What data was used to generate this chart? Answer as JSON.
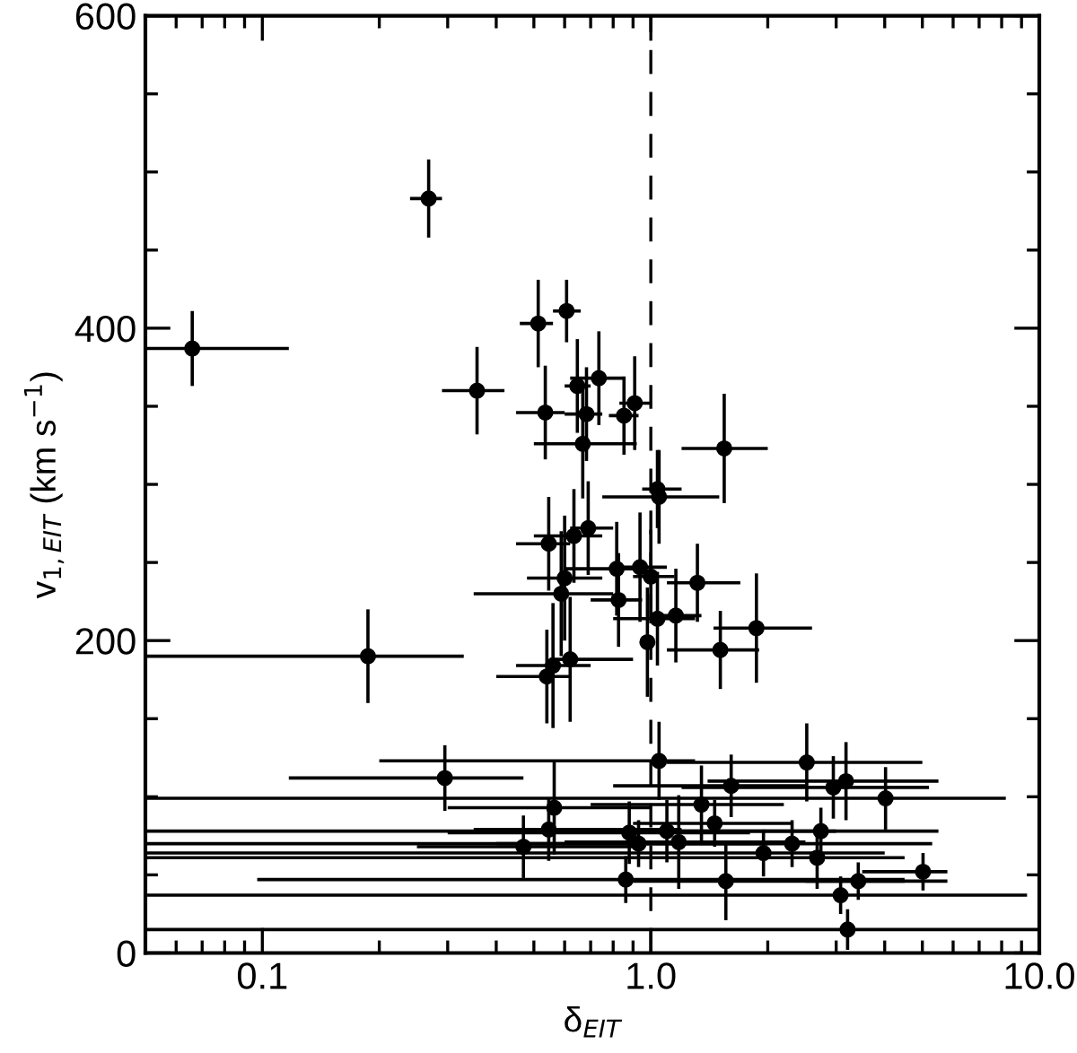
{
  "chart_data": {
    "type": "scatter",
    "xlabel": "δ$_{EIT}$",
    "ylabel": "v$_{1,EIT}$ (km s$^{−1}$)",
    "log": "x",
    "xlim": [
      0.05,
      10
    ],
    "ylim": [
      0,
      600
    ],
    "xticks": [
      0.1,
      {
        "value": 1,
        "label": "1.0"
      },
      {
        "value": 10,
        "label": "10.0"
      }
    ],
    "yticks": [
      0,
      200,
      400,
      600
    ],
    "marker": "circle",
    "ref_lines": [
      {
        "axis": "x",
        "value": 1,
        "color": "#000000",
        "line_style": "dashed"
      }
    ],
    "series": [
      {
        "color": "#000000",
        "x": [
          0.066,
          0.268,
          0.357,
          0.513,
          0.535,
          0.607,
          0.647,
          0.735,
          0.683,
          0.853,
          0.909,
          0.668,
          1.545,
          1.04,
          1.05,
          0.69,
          0.634,
          0.546,
          0.6,
          0.588,
          0.817,
          0.938,
          1.0,
          1.318,
          0.826,
          1.04,
          1.16,
          0.98,
          1.87,
          1.51,
          0.62,
          0.56,
          0.54,
          0.187,
          0.295,
          0.47,
          1.05,
          2.52,
          3.18,
          2.95,
          1.61,
          4.02,
          1.35,
          0.564,
          0.546,
          0.88,
          1.1,
          1.46,
          2.74,
          0.93,
          1.18,
          2.31,
          1.95,
          2.68,
          5.02,
          0.862,
          1.56,
          3.42,
          3.08,
          3.21
        ],
        "values": [
          387,
          483,
          360,
          403,
          346,
          411,
          363,
          368,
          345,
          344,
          352,
          326,
          323,
          297,
          292,
          272,
          267,
          262,
          240,
          230,
          246,
          247,
          241,
          237,
          226,
          214,
          216,
          199,
          208,
          194,
          188,
          184,
          177,
          190,
          112,
          68,
          123,
          122,
          110,
          106,
          107,
          99,
          95,
          93,
          79,
          77,
          78,
          83,
          78,
          70,
          71,
          70,
          64,
          61,
          52,
          47,
          46,
          46,
          37,
          15
        ],
        "errors": [
          24,
          25,
          28,
          28,
          30,
          20,
          30,
          30,
          30,
          25,
          30,
          35,
          35,
          25,
          30,
          30,
          30,
          30,
          40,
          40,
          30,
          35,
          30,
          25,
          30,
          30,
          30,
          35,
          35,
          25,
          40,
          40,
          30,
          30,
          21,
          20,
          25,
          25,
          25,
          20,
          20,
          20,
          25,
          30,
          20,
          20,
          20,
          15,
          15,
          15,
          30,
          15,
          15,
          20,
          12,
          15,
          25,
          12,
          12,
          13
        ],
        "xerrors": [
          [
            0.05,
            0.117
          ],
          [
            0.24,
            0.29
          ],
          [
            0.29,
            0.42
          ],
          [
            0.46,
            0.56
          ],
          [
            0.45,
            0.6
          ],
          [
            0.56,
            0.66
          ],
          [
            0.6,
            0.7
          ],
          [
            0.62,
            0.86
          ],
          [
            0.6,
            0.75
          ],
          [
            0.78,
            0.93
          ],
          [
            0.83,
            1.0
          ],
          [
            0.5,
            0.92
          ],
          [
            1.2,
            2.0
          ],
          [
            0.95,
            1.2
          ],
          [
            0.75,
            1.5
          ],
          [
            0.62,
            0.8
          ],
          [
            0.5,
            0.75
          ],
          [
            0.45,
            0.62
          ],
          [
            0.48,
            0.75
          ],
          [
            0.35,
            0.8
          ],
          [
            0.6,
            0.95
          ],
          [
            0.8,
            1.1
          ],
          [
            0.9,
            1.15
          ],
          [
            1.1,
            1.7
          ],
          [
            0.7,
            0.95
          ],
          [
            0.8,
            1.3
          ],
          [
            1.0,
            1.35
          ],
          [
            0.95,
            1.02
          ],
          [
            1.45,
            2.6
          ],
          [
            1.1,
            1.9
          ],
          [
            0.55,
            0.9
          ],
          [
            0.45,
            0.7
          ],
          [
            0.4,
            0.62
          ],
          [
            0.05,
            0.33
          ],
          [
            0.117,
            0.47
          ],
          [
            0.25,
            0.9
          ],
          [
            0.2,
            1.3
          ],
          [
            1.1,
            5.0
          ],
          [
            1.4,
            5.5
          ],
          [
            1.2,
            5.2
          ],
          [
            0.8,
            2.5
          ],
          [
            0.05,
            8.2
          ],
          [
            0.7,
            2.2
          ],
          [
            0.3,
            1.0
          ],
          [
            0.35,
            1.2
          ],
          [
            0.3,
            1.8
          ],
          [
            0.7,
            3.0
          ],
          [
            0.9,
            2.3
          ],
          [
            0.05,
            5.5
          ],
          [
            0.4,
            2.0
          ],
          [
            0.6,
            2.5
          ],
          [
            0.05,
            5.3
          ],
          [
            0.05,
            4.0
          ],
          [
            0.05,
            4.5
          ],
          [
            3.5,
            5.8
          ],
          [
            0.097,
            4.5
          ],
          [
            0.9,
            5.8
          ],
          [
            2.5,
            4.5
          ],
          [
            0.05,
            9.3
          ],
          [
            0.05,
            10
          ]
        ]
      }
    ]
  }
}
